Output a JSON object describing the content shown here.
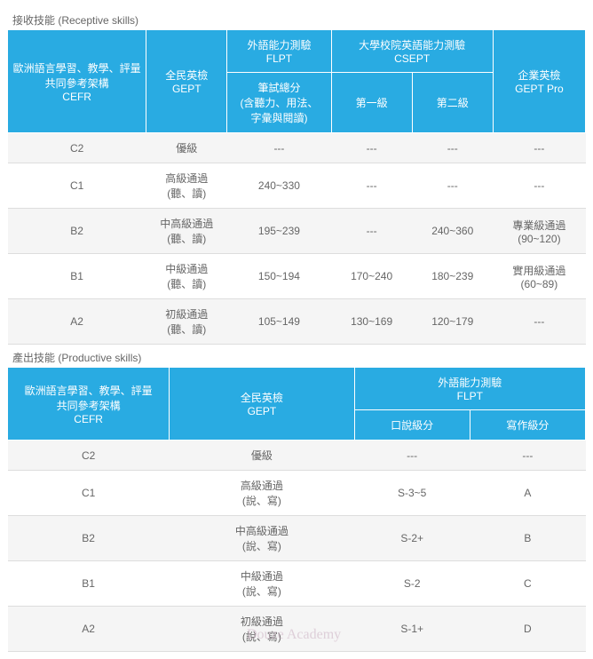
{
  "colors": {
    "header_bg": "#29abe2",
    "header_fg": "#ffffff",
    "row_stripe": "#f5f5f5",
    "row_plain": "#ffffff",
    "text": "#666666",
    "border": "#dddddd"
  },
  "table1": {
    "title": "接收技能 (Receptive skills)",
    "headers": {
      "cefr": "歐洲語言學習、教學、評量\n共同參考架構\nCEFR",
      "gept": "全民英檢\nGEPT",
      "flpt_top": "外語能力測驗\nFLPT",
      "flpt_sub": "筆試總分\n(含聽力、用法、\n字彙與閱讀)",
      "csept_top": "大學校院英語能力測驗\nCSEPT",
      "csept_l1": "第一級",
      "csept_l2": "第二級",
      "geptpro": "企業英檢\nGEPT Pro"
    },
    "rows": [
      {
        "cefr": "C2",
        "gept": "優級",
        "flpt": "---",
        "c1": "---",
        "c2": "---",
        "pro": "---"
      },
      {
        "cefr": "C1",
        "gept": "高級通過\n(聽、讀)",
        "flpt": "240~330",
        "c1": "---",
        "c2": "---",
        "pro": "---"
      },
      {
        "cefr": "B2",
        "gept": "中高級通過\n(聽、讀)",
        "flpt": "195~239",
        "c1": "---",
        "c2": "240~360",
        "pro": "專業級通過\n(90~120)"
      },
      {
        "cefr": "B1",
        "gept": "中級通過\n(聽、讀)",
        "flpt": "150~194",
        "c1": "170~240",
        "c2": "180~239",
        "pro": "實用級通過\n(60~89)"
      },
      {
        "cefr": "A2",
        "gept": "初級通過\n(聽、讀)",
        "flpt": "105~149",
        "c1": "130~169",
        "c2": "120~179",
        "pro": "---"
      }
    ]
  },
  "table2": {
    "title": "產出技能 (Productive skills)",
    "headers": {
      "cefr": "歐洲語言學習、教學、評量\n共同參考架構\nCEFR",
      "gept": "全民英檢\nGEPT",
      "flpt_top": "外語能力測驗\nFLPT",
      "flpt_oral": "口說級分",
      "flpt_write": "寫作級分"
    },
    "rows": [
      {
        "cefr": "C2",
        "gept": "優級",
        "oral": "---",
        "write": "---"
      },
      {
        "cefr": "C1",
        "gept": "高級通過\n(說、寫)",
        "oral": "S-3~5",
        "write": "A"
      },
      {
        "cefr": "B2",
        "gept": "中高級通過\n(說、寫)",
        "oral": "S-2+",
        "write": "B"
      },
      {
        "cefr": "B1",
        "gept": "中級通過\n(說、寫)",
        "oral": "S-2",
        "write": "C"
      },
      {
        "cefr": "A2",
        "gept": "初級通過\n(說、寫)",
        "oral": "S-1+",
        "write": "D"
      }
    ]
  },
  "watermark": "Douze Academy"
}
